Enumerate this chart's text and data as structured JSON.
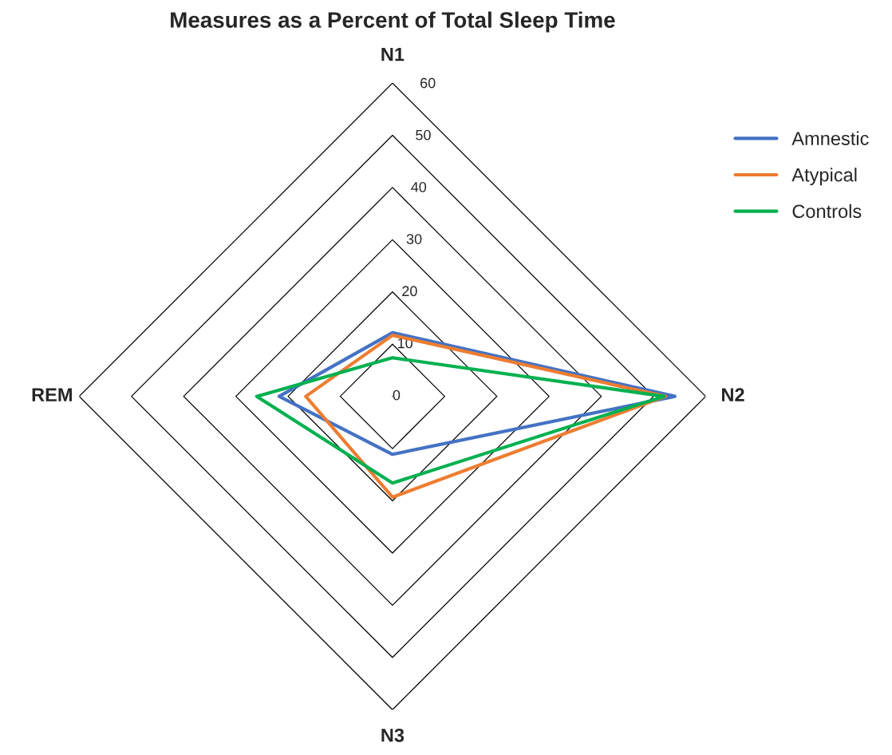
{
  "chart_data": {
    "type": "radar",
    "title": "Measures as a Percent of Total Sleep Time",
    "categories": [
      "N1",
      "N2",
      "N3",
      "REM"
    ],
    "series": [
      {
        "name": "Amnestic",
        "color": "#4472c4",
        "values": [
          12.2,
          54.1,
          11.1,
          21.7
        ]
      },
      {
        "name": "Atypical",
        "color": "#ed7d31",
        "values": [
          11.7,
          52.3,
          19.3,
          16.6
        ]
      },
      {
        "name": "Controls",
        "color": "#00b050",
        "values": [
          7.4,
          52,
          16.6,
          26
        ]
      }
    ],
    "ylim": [
      0,
      60
    ],
    "yticks": [
      0,
      10,
      20,
      30,
      40,
      50,
      60
    ],
    "grid": true,
    "legend": "top right",
    "marker": "none"
  }
}
